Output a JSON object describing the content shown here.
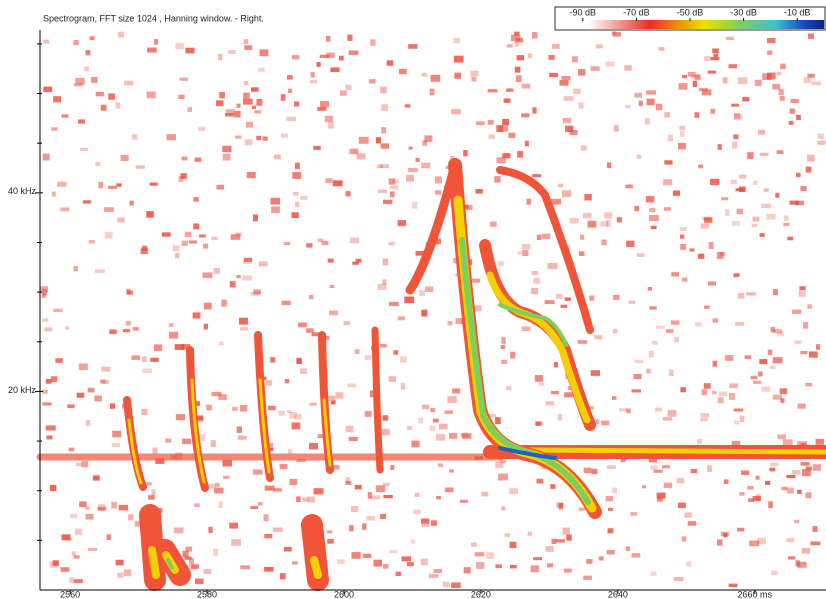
{
  "chart_data": {
    "type": "spectrogram",
    "title": "Spectrogram, FFT size 1024 , Hanning window. - Right.",
    "xlim": [
      2555.6,
      2670.4
    ],
    "xticks": [
      2560,
      2580,
      2600,
      2620,
      2640,
      {
        "value": 2660,
        "label": "2660 ms"
      }
    ],
    "ylim": [
      0,
      56.4
    ],
    "yticks": [
      {
        "value": 20,
        "label": "20 kHz"
      },
      {
        "value": 40,
        "label": "40 kHz"
      }
    ],
    "minor_yticks": [
      5,
      10,
      15,
      25,
      30,
      35,
      45,
      50,
      55
    ],
    "colorbar": {
      "lim": [
        -100,
        0
      ],
      "ticks": [
        {
          "value": -90,
          "label": "-90 dB"
        },
        {
          "value": -70,
          "label": "-70 dB"
        },
        {
          "value": -50,
          "label": "-50 dB"
        },
        {
          "value": -30,
          "label": "-30 dB"
        },
        {
          "value": -10,
          "label": "-10 dB"
        }
      ]
    }
  }
}
